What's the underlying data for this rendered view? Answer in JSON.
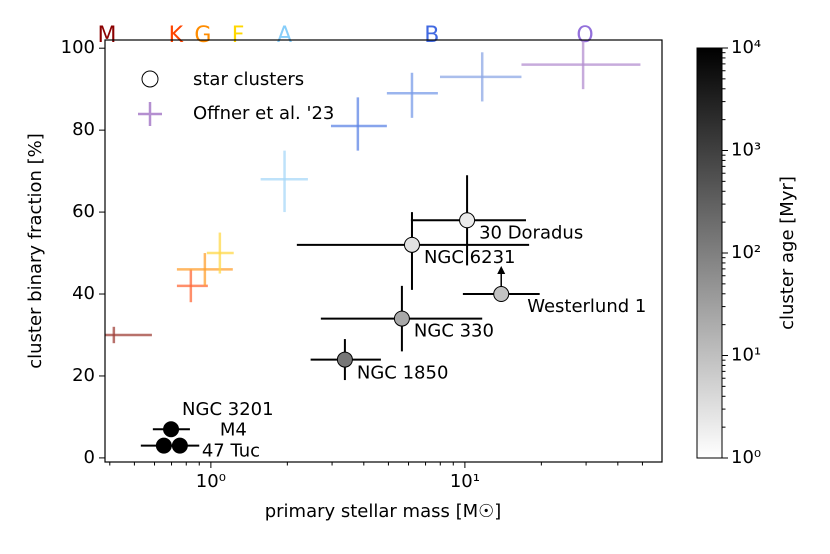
{
  "chart_data": {
    "type": "scatter",
    "xlabel": "primary stellar mass [M☉]",
    "ylabel": "cluster binary fraction [%]",
    "xlim": [
      0.383,
      59.7
    ],
    "ylim": [
      -1,
      102
    ],
    "log_x": true,
    "xticks": [
      {
        "value": 1,
        "label": "10⁰"
      },
      {
        "value": 10,
        "label": "10¹"
      }
    ],
    "xminorticks": [
      0.4,
      0.5,
      0.6,
      0.7,
      0.8,
      0.9,
      2,
      3,
      4,
      5,
      6,
      7,
      8,
      9,
      20,
      30,
      40,
      50
    ],
    "yticks": [
      0,
      20,
      40,
      60,
      80,
      100
    ],
    "spectral_types": [
      {
        "label": "M",
        "x": 0.39,
        "color": "#8b0000"
      },
      {
        "label": "K",
        "x": 0.728,
        "color": "#ff4500"
      },
      {
        "label": "G",
        "x": 0.93,
        "color": "#ff8c00"
      },
      {
        "label": "F",
        "x": 1.28,
        "color": "#ffd700"
      },
      {
        "label": "A",
        "x": 1.95,
        "color": "#87cefa"
      },
      {
        "label": "B",
        "x": 7.41,
        "color": "#4169e1"
      },
      {
        "label": "O",
        "x": 29.7,
        "color": "#9370db"
      }
    ],
    "series": [
      {
        "name": "star clusters",
        "marker": "circle",
        "labels": [
          "30 Doradus",
          "NGC 6231",
          "Westerlund 1",
          "NGC 330",
          "NGC 1850",
          "NGC 3201",
          "M4",
          "47 Tuc"
        ],
        "x": [
          10.2,
          6.19,
          13.9,
          5.65,
          3.37,
          0.697,
          0.755,
          0.653
        ],
        "x_low": [
          6.13,
          2.18,
          9.82,
          2.71,
          2.47,
          0.591,
          0.62,
          0.53
        ],
        "x_high": [
          17.4,
          17.9,
          19.7,
          11.7,
          4.67,
          0.827,
          0.9,
          0.8
        ],
        "values": [
          58,
          52,
          40,
          34,
          24,
          7,
          3,
          3
        ],
        "y_low": [
          47,
          41,
          null,
          26,
          19,
          null,
          null,
          null
        ],
        "y_high": [
          69,
          60,
          null,
          42,
          29,
          null,
          null,
          null
        ],
        "lower_limit": [
          false,
          false,
          true,
          false,
          false,
          false,
          false,
          false
        ],
        "colors": [
          "#ebebeb",
          "#e2e2e2",
          "#c2c2c2",
          "#a8a8a8",
          "#777777",
          "#000000",
          "#000000",
          "#000000"
        ]
      },
      {
        "name": "Offner et al. '23",
        "marker": "plus",
        "color": "#b48fd0",
        "x": [
          0.415,
          0.834,
          0.947,
          1.085,
          1.95,
          3.79,
          6.19,
          11.7,
          29.2
        ],
        "x_low": [
          0.383,
          0.735,
          0.735,
          0.964,
          1.57,
          2.97,
          4.93,
          7.98,
          16.7
        ],
        "x_high": [
          0.586,
          0.973,
          1.22,
          1.23,
          2.41,
          4.93,
          7.83,
          16.7,
          49.1
        ],
        "values": [
          30,
          42,
          46,
          50,
          68,
          81,
          89,
          93,
          96
        ],
        "y_low": [
          28,
          38,
          42,
          45,
          60,
          75,
          83,
          87,
          90
        ],
        "y_high": [
          32,
          46,
          50,
          55,
          75,
          88,
          94,
          99,
          102
        ],
        "colors": [
          "#a0413a",
          "#ff6a3a",
          "#ffa030",
          "#ffd84a",
          "#a8d8f8",
          "#5f86e6",
          "#7a9ce8",
          "#8ea8e6",
          "#b48fd0"
        ]
      }
    ],
    "colorbar": {
      "label": "cluster age [Myr]",
      "log": true,
      "lim": [
        1,
        10000
      ],
      "ticks": [
        {
          "value": 1,
          "label": "10⁰"
        },
        {
          "value": 10,
          "label": "10¹"
        },
        {
          "value": 100,
          "label": "10²"
        },
        {
          "value": 1000,
          "label": "10³"
        },
        {
          "value": 10000,
          "label": "10⁴"
        }
      ],
      "cmap": [
        "#ffffff",
        "#000000"
      ]
    }
  }
}
